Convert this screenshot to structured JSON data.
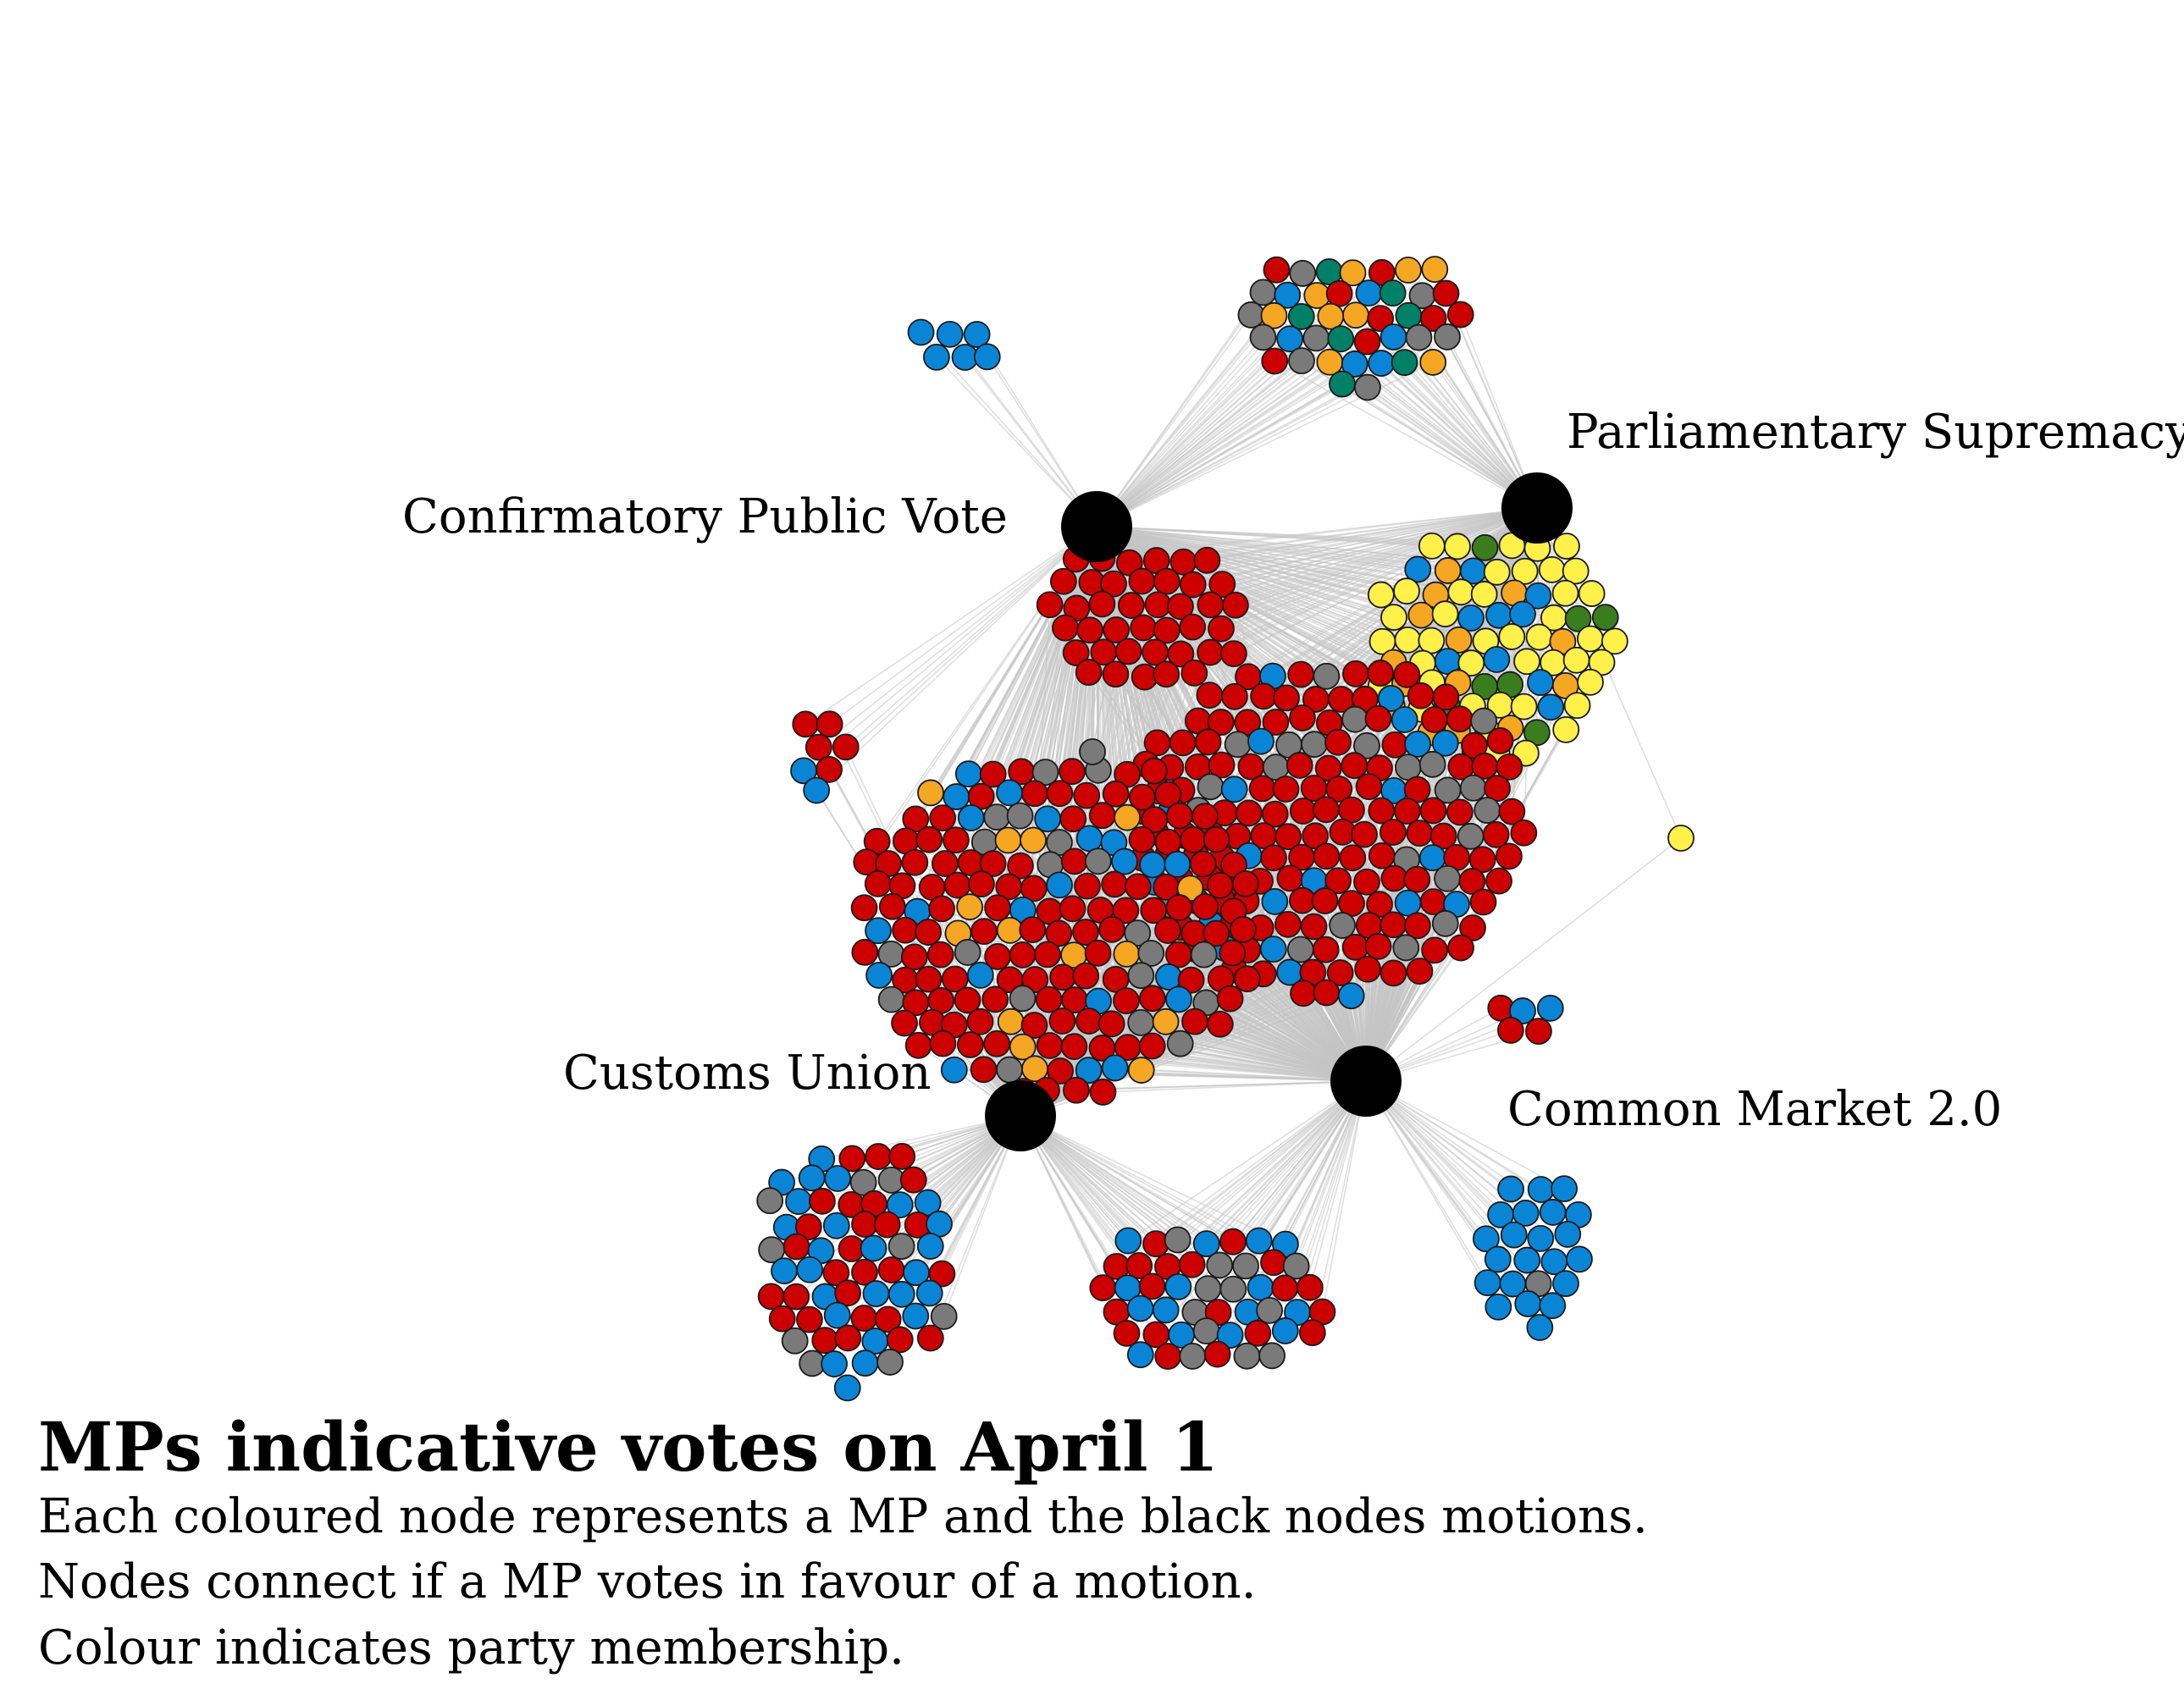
{
  "caption": {
    "title": "MPs indicative votes on April 1",
    "lines": [
      "Each coloured node represents a MP and the black nodes motions.",
      "Nodes connect if a MP votes in favour of a motion.",
      "Colour indicates party membership."
    ]
  },
  "motions": [
    {
      "id": "cpv",
      "label": "Confirmatory Public Vote"
    },
    {
      "id": "ps",
      "label": "Parliamentary Supremacy"
    },
    {
      "id": "cu",
      "label": "Customs Union"
    },
    {
      "id": "cm",
      "label": "Common Market 2.0"
    }
  ],
  "colors": {
    "motion": "#000000",
    "red": "#cc0000",
    "blue": "#0a85d6",
    "gray": "#7a7a7a",
    "orange": "#f5a623",
    "yellow": "#fff04a",
    "green": "#3a7d1f",
    "teal": "#008066",
    "edge": "#c4c4c4",
    "node_stroke": "#1a1a1a"
  }
}
